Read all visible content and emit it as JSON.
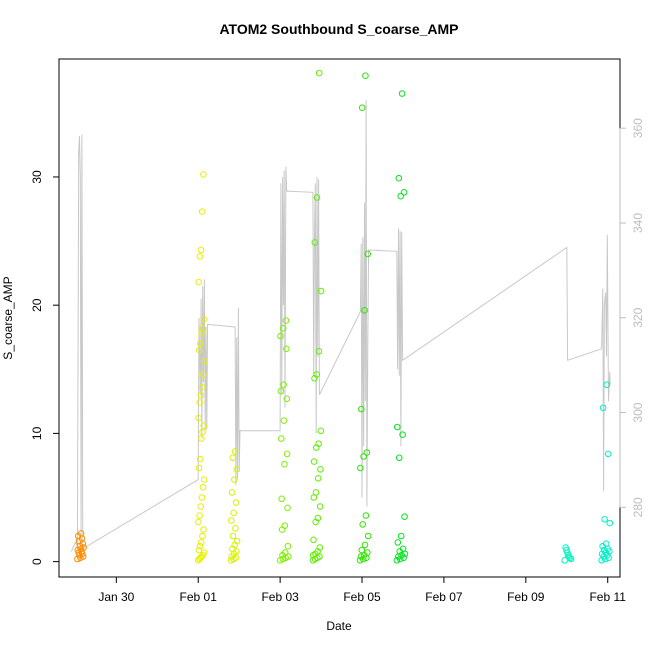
{
  "chart_data": {
    "type": "scatter",
    "title": "ATOM2 Southbound S_coarse_AMP",
    "xlabel": "Date",
    "ylabel": "S_coarse_AMP",
    "xlim": [
      -2.4,
      11.3
    ],
    "ylim": [
      -1.2,
      39.2
    ],
    "y2lim": [
      265.3,
      374.6
    ],
    "x_ticks": [
      {
        "label": "Jan 30",
        "value": -1
      },
      {
        "label": "Feb 01",
        "value": 1
      },
      {
        "label": "Feb 03",
        "value": 3
      },
      {
        "label": "Feb 05",
        "value": 5
      },
      {
        "label": "Feb 07",
        "value": 7
      },
      {
        "label": "Feb 09",
        "value": 9
      },
      {
        "label": "Feb 11",
        "value": 11
      }
    ],
    "y_ticks": [
      {
        "label": "0",
        "value": 0
      },
      {
        "label": "10",
        "value": 10
      },
      {
        "label": "20",
        "value": 20
      },
      {
        "label": "30",
        "value": 30
      }
    ],
    "y2_ticks": [
      {
        "label": "280",
        "value": 280
      },
      {
        "label": "300",
        "value": 300
      },
      {
        "label": "320",
        "value": 320
      },
      {
        "label": "340",
        "value": 340
      },
      {
        "label": "360",
        "value": 360
      }
    ],
    "grid": false,
    "legend": "none",
    "line_color": "#c8c8c8",
    "clusters": [
      {
        "x0": -1.95,
        "x1": -1.8,
        "color": "#ff8c00",
        "points": [
          0.2,
          0.3,
          0.4,
          0.5,
          0.6,
          0.7,
          0.8,
          0.9,
          1.0,
          1.1,
          1.2,
          1.4,
          1.6,
          1.8,
          2.0,
          2.2
        ]
      },
      {
        "x0": 1.0,
        "x1": 1.15,
        "color": "#e8f000",
        "points": [
          0.1,
          0.2,
          0.3,
          0.4,
          0.5,
          0.7,
          0.9,
          1.2,
          1.5,
          2.0,
          2.5,
          3.1,
          3.6,
          4.3,
          5.0,
          5.8,
          6.4,
          7.3,
          8.0,
          9.6,
          10.1,
          10.6,
          11.2,
          12.4,
          13.0,
          13.6,
          14.6,
          15.6,
          16.5,
          17.0,
          17.8,
          18.2,
          18.9,
          21.8,
          23.8,
          24.3,
          27.3,
          30.2
        ]
      },
      {
        "x0": 1.8,
        "x1": 1.95,
        "color": "#d6f200",
        "points": [
          0.1,
          0.2,
          0.3,
          0.4,
          0.6,
          0.8,
          1.0,
          1.3,
          1.6,
          2.0,
          2.6,
          3.2,
          3.8,
          4.6,
          5.4,
          6.4,
          7.2,
          8.1,
          8.6
        ]
      },
      {
        "x0": 3.0,
        "x1": 3.2,
        "color": "#7df000",
        "points": [
          0.1,
          0.2,
          0.3,
          0.4,
          0.5,
          0.7,
          1.2,
          2.5,
          2.8,
          4.2,
          4.9,
          7.6,
          8.4,
          9.6,
          11.0,
          12.7,
          13.3,
          13.8,
          16.6,
          17.6,
          18.2,
          18.8
        ]
      },
      {
        "x0": 3.8,
        "x1": 4.0,
        "color": "#5ef000",
        "points": [
          0.1,
          0.2,
          0.3,
          0.4,
          0.5,
          0.6,
          0.8,
          1.1,
          1.7,
          3.1,
          3.4,
          4.3,
          5.0,
          5.4,
          6.5,
          7.2,
          7.8,
          8.9,
          9.2,
          10.2,
          14.3,
          14.6,
          16.4,
          21.1,
          24.9,
          28.4,
          38.1
        ]
      },
      {
        "x0": 4.95,
        "x1": 5.15,
        "color": "#2de600",
        "points": [
          0.1,
          0.2,
          0.3,
          0.4,
          0.5,
          0.7,
          0.9,
          1.3,
          2.0,
          2.9,
          3.6,
          7.3,
          8.2,
          8.5,
          11.9,
          19.6,
          24.0,
          35.4,
          37.9
        ]
      },
      {
        "x0": 5.85,
        "x1": 6.05,
        "color": "#00e61e",
        "points": [
          0.1,
          0.2,
          0.3,
          0.4,
          0.5,
          0.6,
          0.8,
          1.0,
          1.5,
          2.0,
          3.5,
          8.1,
          9.9,
          10.5,
          28.5,
          28.8,
          29.9,
          36.5
        ]
      },
      {
        "x0": 9.95,
        "x1": 10.1,
        "color": "#00f5c0",
        "points": [
          0.1,
          0.2,
          0.3,
          0.4,
          0.5,
          0.7,
          0.9,
          1.1
        ]
      },
      {
        "x0": 10.85,
        "x1": 11.05,
        "color": "#00f0c8",
        "points": [
          0.1,
          0.2,
          0.3,
          0.4,
          0.5,
          0.6,
          0.7,
          0.8,
          0.9,
          1.0,
          1.2,
          1.4,
          3.0,
          3.3,
          8.4,
          12.0,
          13.8
        ]
      }
    ],
    "line_series": [
      [
        -2.1,
        0.8
      ],
      [
        -2.0,
        1.5
      ],
      [
        -1.95,
        1.2
      ],
      [
        -1.92,
        32.0
      ],
      [
        -1.9,
        33.2
      ],
      [
        -1.88,
        30.0
      ],
      [
        -1.86,
        2.2
      ],
      [
        -1.84,
        33.3
      ],
      [
        -1.82,
        1.0
      ],
      [
        1.0,
        6.4
      ],
      [
        1.02,
        19.0
      ],
      [
        1.05,
        13.0
      ],
      [
        1.07,
        20.5
      ],
      [
        1.09,
        9.6
      ],
      [
        1.11,
        21.5
      ],
      [
        1.13,
        14.0
      ],
      [
        1.15,
        22.0
      ],
      [
        1.17,
        10.2
      ],
      [
        1.19,
        18.3
      ],
      [
        1.21,
        10.3
      ],
      [
        1.23,
        18.5
      ],
      [
        1.9,
        18.3
      ],
      [
        1.92,
        6.0
      ],
      [
        1.94,
        17.5
      ],
      [
        1.96,
        6.5
      ],
      [
        1.98,
        19.8
      ],
      [
        2.0,
        7.0
      ],
      [
        2.02,
        10.2
      ],
      [
        3.0,
        10.2
      ],
      [
        3.02,
        29.5
      ],
      [
        3.04,
        13.0
      ],
      [
        3.06,
        30.0
      ],
      [
        3.08,
        20.0
      ],
      [
        3.1,
        30.5
      ],
      [
        3.12,
        12.0
      ],
      [
        3.14,
        30.8
      ],
      [
        3.16,
        28.9
      ],
      [
        3.8,
        28.8
      ],
      [
        3.82,
        14.5
      ],
      [
        3.84,
        25.5
      ],
      [
        3.86,
        29.5
      ],
      [
        3.88,
        10.0
      ],
      [
        3.9,
        30.0
      ],
      [
        3.92,
        16.0
      ],
      [
        3.94,
        29.8
      ],
      [
        3.96,
        13.0
      ],
      [
        4.96,
        19.5
      ],
      [
        4.98,
        24.8
      ],
      [
        5.0,
        5.0
      ],
      [
        5.02,
        25.3
      ],
      [
        5.04,
        9.0
      ],
      [
        5.06,
        28.0
      ],
      [
        5.08,
        12.5
      ],
      [
        5.1,
        36.0
      ],
      [
        5.12,
        4.3
      ],
      [
        5.14,
        17.0
      ],
      [
        5.16,
        24.3
      ],
      [
        5.85,
        24.2
      ],
      [
        5.87,
        15.0
      ],
      [
        5.89,
        26.0
      ],
      [
        5.91,
        14.5
      ],
      [
        5.93,
        25.8
      ],
      [
        5.95,
        9.0
      ],
      [
        5.97,
        25.7
      ],
      [
        5.99,
        15.7
      ],
      [
        10.0,
        24.5
      ],
      [
        10.02,
        15.7
      ],
      [
        10.85,
        16.6
      ],
      [
        10.88,
        21.3
      ],
      [
        10.9,
        5.5
      ],
      [
        10.92,
        20.0
      ],
      [
        10.95,
        21.0
      ],
      [
        10.97,
        16.0
      ],
      [
        10.99,
        25.5
      ],
      [
        11.02,
        12.5
      ],
      [
        11.05,
        14.8
      ],
      [
        11.06,
        13.8
      ]
    ]
  }
}
